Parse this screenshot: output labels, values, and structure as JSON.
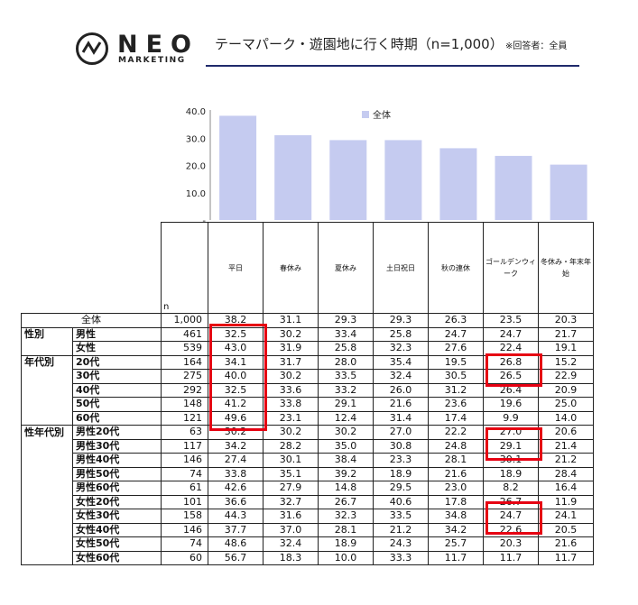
{
  "header": {
    "logo_word": "NEO",
    "logo_sub": "MARKETING",
    "title": "テーマパーク・遊園地に行く時期（n=1,000）",
    "title_note": "※回答者：全員",
    "rule_color": "#1f2a6b"
  },
  "chart_data": {
    "type": "bar",
    "categories": [
      "平日",
      "春休み",
      "夏休み",
      "土日祝日",
      "秋の連休",
      "ゴールデンウィーク",
      "冬休み・年末年始"
    ],
    "series": [
      {
        "name": "全体",
        "values": [
          38.2,
          31.1,
          29.3,
          29.3,
          26.3,
          23.5,
          20.3
        ],
        "color": "#c5cbf0"
      }
    ],
    "ylim": [
      0,
      40
    ],
    "yticks": [
      "-",
      "10.0",
      "20.0",
      "30.0",
      "40.0"
    ],
    "legend_position": "top",
    "grid": false
  },
  "table": {
    "n_label": "n",
    "columns": [
      "平日",
      "春休み",
      "夏休み",
      "土日祝日",
      "秋の連休",
      "ゴールデンウィーク",
      "冬休み・年末年始"
    ],
    "rows": [
      {
        "group": "",
        "label": "全体",
        "n": "1,000",
        "values": [
          "38.2",
          "31.1",
          "29.3",
          "29.3",
          "26.3",
          "23.5",
          "20.3"
        ]
      },
      {
        "group": "性別",
        "label": "男性",
        "n": "461",
        "values": [
          "32.5",
          "30.2",
          "33.4",
          "25.8",
          "24.7",
          "24.7",
          "21.7"
        ]
      },
      {
        "group": "",
        "label": "女性",
        "n": "539",
        "values": [
          "43.0",
          "31.9",
          "25.8",
          "32.3",
          "27.6",
          "22.4",
          "19.1"
        ]
      },
      {
        "group": "年代別",
        "label": "20代",
        "n": "164",
        "values": [
          "34.1",
          "31.7",
          "28.0",
          "35.4",
          "19.5",
          "26.8",
          "15.2"
        ]
      },
      {
        "group": "",
        "label": "30代",
        "n": "275",
        "values": [
          "40.0",
          "30.2",
          "33.5",
          "32.4",
          "30.5",
          "26.5",
          "22.9"
        ]
      },
      {
        "group": "",
        "label": "40代",
        "n": "292",
        "values": [
          "32.5",
          "33.6",
          "33.2",
          "26.0",
          "31.2",
          "26.4",
          "20.9"
        ]
      },
      {
        "group": "",
        "label": "50代",
        "n": "148",
        "values": [
          "41.2",
          "33.8",
          "29.1",
          "21.6",
          "23.6",
          "19.6",
          "25.0"
        ]
      },
      {
        "group": "",
        "label": "60代",
        "n": "121",
        "values": [
          "49.6",
          "23.1",
          "12.4",
          "31.4",
          "17.4",
          "9.9",
          "14.0"
        ]
      },
      {
        "group": "性年代別",
        "label": "男性20代",
        "n": "63",
        "values": [
          "30.2",
          "30.2",
          "30.2",
          "27.0",
          "22.2",
          "27.0",
          "20.6"
        ]
      },
      {
        "group": "",
        "label": "男性30代",
        "n": "117",
        "values": [
          "34.2",
          "28.2",
          "35.0",
          "30.8",
          "24.8",
          "29.1",
          "21.4"
        ]
      },
      {
        "group": "",
        "label": "男性40代",
        "n": "146",
        "values": [
          "27.4",
          "30.1",
          "38.4",
          "23.3",
          "28.1",
          "30.1",
          "21.2"
        ]
      },
      {
        "group": "",
        "label": "男性50代",
        "n": "74",
        "values": [
          "33.8",
          "35.1",
          "39.2",
          "18.9",
          "21.6",
          "18.9",
          "28.4"
        ]
      },
      {
        "group": "",
        "label": "男性60代",
        "n": "61",
        "values": [
          "42.6",
          "27.9",
          "14.8",
          "29.5",
          "23.0",
          "8.2",
          "16.4"
        ]
      },
      {
        "group": "",
        "label": "女性20代",
        "n": "101",
        "values": [
          "36.6",
          "32.7",
          "26.7",
          "40.6",
          "17.8",
          "26.7",
          "11.9"
        ]
      },
      {
        "group": "",
        "label": "女性30代",
        "n": "158",
        "values": [
          "44.3",
          "31.6",
          "32.3",
          "33.5",
          "34.8",
          "24.7",
          "24.1"
        ]
      },
      {
        "group": "",
        "label": "女性40代",
        "n": "146",
        "values": [
          "37.7",
          "37.0",
          "28.1",
          "21.2",
          "34.2",
          "22.6",
          "20.5"
        ]
      },
      {
        "group": "",
        "label": "女性50代",
        "n": "74",
        "values": [
          "48.6",
          "32.4",
          "18.9",
          "24.3",
          "25.7",
          "20.3",
          "21.6"
        ]
      },
      {
        "group": "",
        "label": "女性60代",
        "n": "60",
        "values": [
          "56.7",
          "18.3",
          "10.0",
          "33.3",
          "11.7",
          "11.7",
          "11.7"
        ]
      }
    ],
    "highlight_color": "#e60012"
  }
}
